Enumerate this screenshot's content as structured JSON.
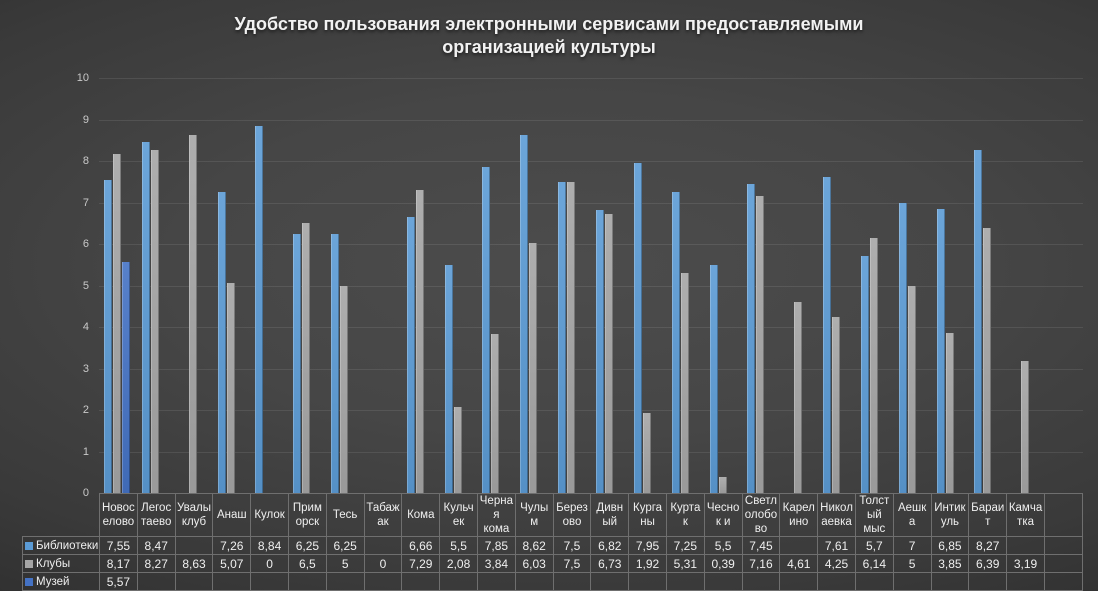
{
  "colors": {
    "background_center": "#4c4c4c",
    "background_edge": "#222222",
    "grid_line": "#555555",
    "table_border": "#6f6f6f",
    "text": "#f0f0f0",
    "axis_label": "#c9c9c9"
  },
  "chart_data": {
    "type": "bar",
    "title": "Удобство пользования электронными сервисами предоставляемыми организацией культуры",
    "xlabel": "",
    "ylabel": "",
    "ylim": [
      0,
      10
    ],
    "yticks": [
      0,
      1,
      2,
      3,
      4,
      5,
      6,
      7,
      8,
      9,
      10
    ],
    "grid": true,
    "legend_position": "table-left",
    "decimal_separator": ",",
    "table_extra_empty_columns": 1,
    "categories": [
      "Новоселово",
      "Легостаево",
      "Увалы клуб",
      "Анаш",
      "Кулок",
      "Приморск",
      "Тесь",
      "Табажак",
      "Кома",
      "Кульчек",
      "Черная кома",
      "Чулым",
      "Березово",
      "Дивный",
      "Курганы",
      "Куртак",
      "Чеснок и",
      "Светлолобово",
      "Карелино",
      "Николаевка",
      "Толстый мыс",
      "Аешка",
      "Интикуль",
      "Бараит",
      "Камчатка"
    ],
    "series": [
      {
        "name": "Библиотеки",
        "color": "#5B9BD5",
        "values": [
          7.55,
          8.47,
          null,
          7.26,
          8.84,
          6.25,
          6.25,
          null,
          6.66,
          5.5,
          7.85,
          8.62,
          7.5,
          6.82,
          7.95,
          7.25,
          5.5,
          7.45,
          null,
          7.61,
          5.7,
          7,
          6.85,
          8.27,
          null
        ]
      },
      {
        "name": "Клубы",
        "color": "#A5A5A5",
        "values": [
          8.17,
          8.27,
          8.63,
          5.07,
          0,
          6.5,
          5,
          0,
          7.29,
          2.08,
          3.84,
          6.03,
          7.5,
          6.73,
          1.92,
          5.31,
          0.39,
          7.16,
          4.61,
          4.25,
          6.14,
          5,
          3.85,
          6.39,
          3.19
        ]
      },
      {
        "name": "Музей",
        "color": "#4472C4",
        "values": [
          5.57,
          null,
          null,
          null,
          null,
          null,
          null,
          null,
          null,
          null,
          null,
          null,
          null,
          null,
          null,
          null,
          null,
          null,
          null,
          null,
          null,
          null,
          null,
          null,
          null
        ]
      }
    ]
  }
}
